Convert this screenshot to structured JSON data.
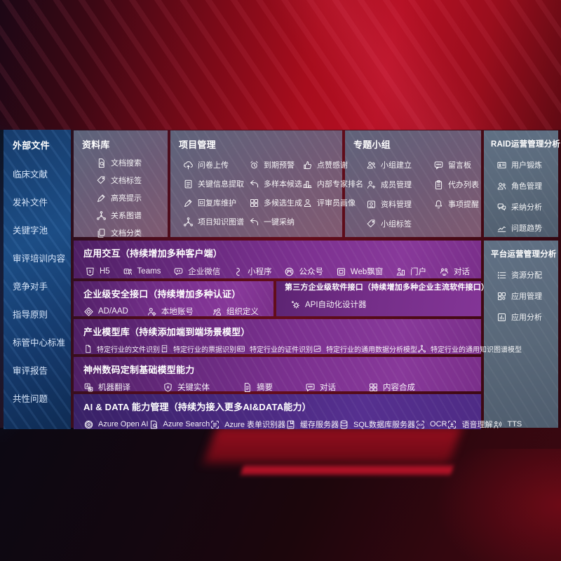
{
  "colors": {
    "background_red": "#a80d1d",
    "panel_purple": "#7c3190",
    "panel_ai_violet": "#47287c",
    "panel_gray_blue": "#596879",
    "panel_gray_purple": "#71627e",
    "sidebar_blue": "#1c4d85"
  },
  "sidebar": {
    "title": "外部文件",
    "items": [
      "临床文献",
      "发补文件",
      "关键字池",
      "审评培训内容",
      "竞争对手",
      "指导原则",
      "标管中心标准",
      "审评报告",
      "共性问题"
    ]
  },
  "library": {
    "title": "资料库",
    "items": [
      {
        "icon": "doc-search",
        "label": "文档搜索"
      },
      {
        "icon": "tag",
        "label": "文档标签"
      },
      {
        "icon": "highlighter",
        "label": "高亮提示"
      },
      {
        "icon": "knowledge-graph",
        "label": "关系图谱"
      },
      {
        "icon": "doc-copy",
        "label": "文档分类"
      }
    ]
  },
  "project": {
    "title": "项目管理",
    "items": [
      {
        "icon": "cloud-upload",
        "label": "问卷上传"
      },
      {
        "icon": "alarm",
        "label": "到期预警"
      },
      {
        "icon": "thumbs-up",
        "label": "点赞感谢"
      },
      {
        "icon": "doc-extract",
        "label": "关键信息提取"
      },
      {
        "icon": "reply-arrow",
        "label": "多样本候选"
      },
      {
        "icon": "ranking",
        "label": "内部专家排名"
      },
      {
        "icon": "pen",
        "label": "回复库维护"
      },
      {
        "icon": "grid4",
        "label": "多候选生成"
      },
      {
        "icon": "person",
        "label": "评审员画像"
      },
      {
        "icon": "knowledge-graph",
        "label": "项目知识图谱"
      },
      {
        "icon": "reply-arrow",
        "label": "一键采纳"
      }
    ]
  },
  "group": {
    "title": "专题小组",
    "items": [
      {
        "icon": "people",
        "label": "小组建立"
      },
      {
        "icon": "bbs-board",
        "label": "留言板"
      },
      {
        "icon": "person-add",
        "label": "成员管理"
      },
      {
        "icon": "clipboard",
        "label": "代办列表"
      },
      {
        "icon": "album",
        "label": "资料管理"
      },
      {
        "icon": "bell",
        "label": "事项提醒"
      },
      {
        "icon": "tag",
        "label": "小组标签"
      }
    ]
  },
  "raid": {
    "title": "RAID运营管理分析",
    "items": [
      {
        "icon": "id-card",
        "label": "用户锻炼"
      },
      {
        "icon": "people",
        "label": "角色管理"
      },
      {
        "icon": "chat-analysis",
        "label": "采纳分析"
      },
      {
        "icon": "trend-chart",
        "label": "问题趋势"
      }
    ]
  },
  "platform": {
    "title": "平台运营管理分析",
    "items": [
      {
        "icon": "list-lines",
        "label": "资源分配"
      },
      {
        "icon": "app-grid",
        "label": "应用管理"
      },
      {
        "icon": "app-chart",
        "label": "应用分析"
      }
    ]
  },
  "interaction": {
    "title": "应用交互（持续增加多种客户端）",
    "items": [
      {
        "icon": "h5-badge",
        "label": "H5"
      },
      {
        "icon": "teams",
        "label": "Teams"
      },
      {
        "icon": "wechat-bubble",
        "label": "企业微信"
      },
      {
        "icon": "miniprogram",
        "label": "小程序"
      },
      {
        "icon": "official-account",
        "label": "公众号"
      },
      {
        "icon": "web-window",
        "label": "Web飘窗"
      },
      {
        "icon": "portal-person",
        "label": "门户"
      },
      {
        "icon": "dialog-duo",
        "label": "对话"
      }
    ]
  },
  "security": {
    "title": "企业级安全接口（持续增加多种认证）",
    "items": [
      {
        "icon": "ad-diamond",
        "label": "AD/AAD"
      },
      {
        "icon": "person-gear",
        "label": "本地账号"
      },
      {
        "icon": "org-people",
        "label": "组织定义"
      }
    ]
  },
  "thirdparty": {
    "title": "第三方企业级软件接口（持续增加多种企业主流软件接口）",
    "items": [
      {
        "icon": "api-gear",
        "label": "API自动化设计器"
      }
    ]
  },
  "industry": {
    "title": "产业模型库（持续添加端到端场景模型）",
    "items": [
      {
        "icon": "doc",
        "label": "特定行业的文件识别"
      },
      {
        "icon": "receipt",
        "label": "特定行业的票据识别"
      },
      {
        "icon": "id-card",
        "label": "特定行业的证件识别"
      },
      {
        "icon": "image-chart",
        "label": "特定行业的通用数据分析模型"
      },
      {
        "icon": "knowledge-graph",
        "label": "特定行业的通用知识图谱模型"
      }
    ]
  },
  "base_models": {
    "title": "神州数码定制基础模型能力",
    "items": [
      {
        "icon": "translate",
        "label": "机器翻译"
      },
      {
        "icon": "entity-shield",
        "label": "关键实体"
      },
      {
        "icon": "doc-lines",
        "label": "摘要"
      },
      {
        "icon": "chat-dots",
        "label": "对话"
      },
      {
        "icon": "grid4",
        "label": "内容合成"
      }
    ]
  },
  "ai_data": {
    "title": "AI & DATA 能力管理（持续为接入更多AI&DATA能力）",
    "items": [
      {
        "icon": "openai",
        "label": "Azure Open AI"
      },
      {
        "icon": "search-doc",
        "label": "Azure Search"
      },
      {
        "icon": "form-recognizer",
        "label": "Azure 表单识别器"
      },
      {
        "icon": "cache-server",
        "label": "缓存服务器"
      },
      {
        "icon": "database",
        "label": "SQL数据库服务器"
      },
      {
        "icon": "ocr-frame",
        "label": "OCR"
      },
      {
        "icon": "speech",
        "label": "语音理解"
      },
      {
        "icon": "tts-person",
        "label": "TTS"
      }
    ]
  }
}
